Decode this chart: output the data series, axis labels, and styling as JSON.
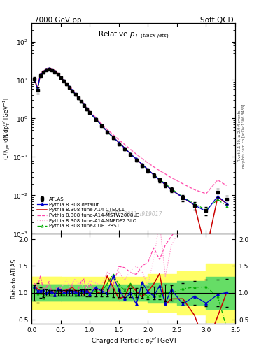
{
  "title_left": "7000 GeV pp",
  "title_right": "Soft QCD",
  "plot_title": "Relative p$_{T}$ $_{(track jets)}$",
  "xlabel": "Charged Particle $p_{T}^{rel}$ [GeV]",
  "ylabel_main": "(1/N$_{jet}$)dN/dp$_{T}^{rel}$ [GeV$^{-1}$]",
  "ylabel_ratio": "Ratio to ATLAS",
  "right_label_top": "Rivet 3.1.10, ≥ 2.9M events",
  "right_label_bot": "mcplots.cern.ch [arXiv:1306.3436]",
  "watermark": "ATLAS_2011_I919017",
  "color_atlas": "#000000",
  "color_default": "#0000cc",
  "color_cteql1": "#cc0000",
  "color_mstw": "#ff44aa",
  "color_nnpdf": "#ff99cc",
  "color_cuetp": "#00aa00",
  "xlim": [
    0.0,
    3.5
  ],
  "ylim_main": [
    0.001,
    300
  ],
  "ylim_ratio": [
    0.42,
    2.1
  ],
  "ratio_yticks": [
    0.5,
    1.0,
    1.5,
    2.0
  ],
  "band_yellow": 0.3,
  "band_green": 0.15,
  "x_pts": [
    0.05,
    0.1,
    0.15,
    0.2,
    0.25,
    0.3,
    0.35,
    0.4,
    0.45,
    0.5,
    0.55,
    0.6,
    0.65,
    0.7,
    0.75,
    0.8,
    0.85,
    0.9,
    0.95,
    1.0,
    1.1,
    1.2,
    1.3,
    1.4,
    1.5,
    1.6,
    1.7,
    1.8,
    1.9,
    2.0,
    2.1,
    2.2,
    2.3,
    2.4,
    2.6,
    2.8,
    3.0,
    3.2,
    3.35
  ],
  "atlas_y": [
    10.5,
    5.5,
    13.0,
    16.0,
    18.5,
    19.2,
    18.5,
    16.5,
    14.0,
    11.5,
    9.5,
    7.8,
    6.4,
    5.2,
    4.2,
    3.4,
    2.75,
    2.2,
    1.75,
    1.4,
    0.95,
    0.65,
    0.44,
    0.31,
    0.22,
    0.16,
    0.115,
    0.083,
    0.06,
    0.044,
    0.033,
    0.025,
    0.019,
    0.014,
    0.0085,
    0.0055,
    0.004,
    0.012,
    0.0078
  ],
  "atlas_yerr": [
    1.5,
    1.0,
    1.3,
    1.2,
    1.1,
    1.0,
    0.9,
    0.8,
    0.7,
    0.6,
    0.5,
    0.4,
    0.35,
    0.28,
    0.23,
    0.19,
    0.16,
    0.13,
    0.11,
    0.09,
    0.06,
    0.045,
    0.032,
    0.023,
    0.017,
    0.013,
    0.01,
    0.007,
    0.006,
    0.005,
    0.004,
    0.003,
    0.003,
    0.002,
    0.0015,
    0.0012,
    0.001,
    0.003,
    0.002
  ],
  "py_default_y": [
    11.0,
    5.8,
    13.5,
    16.5,
    19.0,
    19.8,
    19.0,
    17.0,
    14.5,
    11.8,
    9.8,
    8.0,
    6.6,
    5.4,
    4.35,
    3.5,
    2.82,
    2.25,
    1.8,
    1.45,
    0.98,
    0.67,
    0.46,
    0.33,
    0.235,
    0.17,
    0.12,
    0.088,
    0.064,
    0.047,
    0.034,
    0.025,
    0.019,
    0.014,
    0.0088,
    0.0056,
    0.0038,
    0.0095,
    0.0062
  ],
  "py_cteql1_y": [
    11.0,
    5.8,
    13.5,
    16.5,
    19.0,
    19.8,
    19.0,
    17.0,
    14.5,
    11.8,
    9.8,
    8.0,
    6.6,
    5.4,
    4.35,
    3.5,
    2.82,
    2.25,
    1.8,
    1.45,
    0.98,
    0.67,
    0.46,
    0.33,
    0.235,
    0.17,
    0.12,
    0.088,
    0.064,
    0.047,
    0.034,
    0.025,
    0.019,
    0.014,
    0.0088,
    0.0056,
    0.00035,
    0.009,
    0.0062
  ],
  "py_mstw_y": [
    12.0,
    6.2,
    14.5,
    17.5,
    20.0,
    20.8,
    20.0,
    18.0,
    15.5,
    12.8,
    10.5,
    8.6,
    7.0,
    5.8,
    4.7,
    3.8,
    3.05,
    2.44,
    1.95,
    1.57,
    1.07,
    0.74,
    0.52,
    0.38,
    0.28,
    0.21,
    0.157,
    0.118,
    0.09,
    0.07,
    0.055,
    0.044,
    0.036,
    0.029,
    0.02,
    0.014,
    0.011,
    0.025,
    0.018
  ],
  "py_nnpdf_y": [
    12.0,
    6.2,
    14.5,
    17.5,
    20.0,
    20.8,
    20.0,
    18.0,
    15.5,
    12.8,
    10.5,
    8.6,
    7.0,
    5.8,
    4.7,
    3.8,
    3.05,
    2.44,
    1.95,
    1.57,
    1.07,
    0.74,
    0.52,
    0.38,
    0.28,
    0.21,
    0.157,
    0.118,
    0.09,
    0.07,
    0.055,
    0.044,
    0.036,
    0.029,
    0.02,
    0.014,
    0.011,
    0.025,
    0.018
  ],
  "py_cuetp_y": [
    10.8,
    5.5,
    13.2,
    16.2,
    18.8,
    19.5,
    18.8,
    16.8,
    14.2,
    11.6,
    9.6,
    7.9,
    6.5,
    5.3,
    4.25,
    3.4,
    2.75,
    2.2,
    1.75,
    1.4,
    0.95,
    0.66,
    0.45,
    0.32,
    0.225,
    0.165,
    0.118,
    0.086,
    0.062,
    0.046,
    0.034,
    0.026,
    0.02,
    0.015,
    0.009,
    0.006,
    0.0042,
    0.0078,
    0.0052
  ]
}
